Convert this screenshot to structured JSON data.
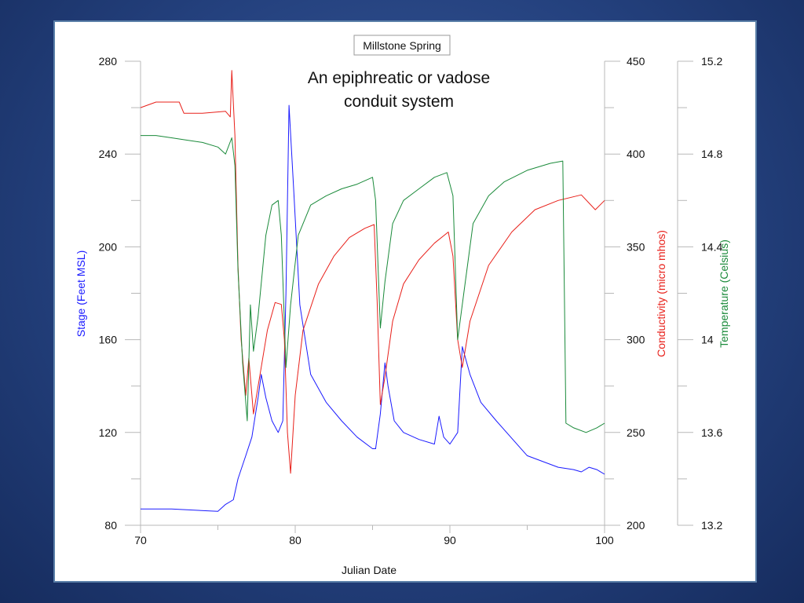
{
  "chart_data": {
    "type": "line",
    "title": "Millstone Spring",
    "annotation": [
      "An epiphreatic or vadose",
      "conduit system"
    ],
    "xlabel": "Julian Date",
    "xlim": [
      70,
      100
    ],
    "x_ticks": [
      70,
      80,
      90,
      100
    ],
    "axes": {
      "stage": {
        "label": "Stage (Feet MSL)",
        "color": "#1a1aff",
        "ylim": [
          80,
          280
        ],
        "ticks": [
          80,
          120,
          160,
          200,
          240,
          280
        ]
      },
      "conductivity": {
        "label": "Conductivity (micro mhos)",
        "color": "#e8201a",
        "ylim": [
          200,
          450
        ],
        "ticks": [
          200,
          250,
          300,
          350,
          400,
          450
        ]
      },
      "temperature": {
        "label": "Temperature (Celsius)",
        "color": "#1a8a3a",
        "ylim": [
          13.2,
          15.2
        ],
        "ticks": [
          "13.2",
          "13.6",
          "14",
          "14.4",
          "14.8",
          "15.2"
        ]
      }
    },
    "series": [
      {
        "name": "Stage (Feet MSL)",
        "axis": "stage",
        "points": [
          [
            70,
            87
          ],
          [
            72,
            87
          ],
          [
            75,
            86
          ],
          [
            75.5,
            89
          ],
          [
            76,
            91
          ],
          [
            76.3,
            100
          ],
          [
            76.8,
            110
          ],
          [
            77.2,
            118
          ],
          [
            77.6,
            135
          ],
          [
            77.8,
            145
          ],
          [
            78.1,
            135
          ],
          [
            78.5,
            125
          ],
          [
            78.9,
            120
          ],
          [
            79.2,
            125
          ],
          [
            79.4,
            180
          ],
          [
            79.6,
            261
          ],
          [
            79.9,
            225
          ],
          [
            80.3,
            175
          ],
          [
            81,
            145
          ],
          [
            82,
            133
          ],
          [
            83,
            125
          ],
          [
            84,
            118
          ],
          [
            85,
            113
          ],
          [
            85.2,
            113
          ],
          [
            85.5,
            128
          ],
          [
            85.8,
            150
          ],
          [
            86,
            140
          ],
          [
            86.4,
            125
          ],
          [
            87,
            120
          ],
          [
            88,
            117
          ],
          [
            89,
            115
          ],
          [
            89.3,
            127
          ],
          [
            89.6,
            118
          ],
          [
            90,
            115
          ],
          [
            90.5,
            120
          ],
          [
            90.8,
            157
          ],
          [
            91.3,
            145
          ],
          [
            92,
            133
          ],
          [
            93,
            125
          ],
          [
            95,
            110
          ],
          [
            97,
            105
          ],
          [
            98,
            104
          ],
          [
            98.5,
            103
          ],
          [
            99,
            105
          ],
          [
            99.5,
            104
          ],
          [
            100,
            102
          ]
        ]
      },
      {
        "name": "Conductivity (micro mhos)",
        "axis": "conductivity",
        "points": [
          [
            70,
            425
          ],
          [
            71,
            428
          ],
          [
            72.5,
            428
          ],
          [
            72.8,
            422
          ],
          [
            74,
            422
          ],
          [
            75.5,
            423
          ],
          [
            75.8,
            420
          ],
          [
            75.9,
            445
          ],
          [
            76.1,
            410
          ],
          [
            76.3,
            340
          ],
          [
            76.5,
            300
          ],
          [
            76.8,
            270
          ],
          [
            77,
            290
          ],
          [
            77.3,
            260
          ],
          [
            77.7,
            280
          ],
          [
            78.2,
            305
          ],
          [
            78.7,
            320
          ],
          [
            79.1,
            319
          ],
          [
            79.3,
            300
          ],
          [
            79.5,
            250
          ],
          [
            79.7,
            228
          ],
          [
            80,
            270
          ],
          [
            80.5,
            305
          ],
          [
            81.5,
            330
          ],
          [
            82.5,
            345
          ],
          [
            83.5,
            355
          ],
          [
            84.5,
            360
          ],
          [
            85.1,
            362
          ],
          [
            85.3,
            320
          ],
          [
            85.5,
            265
          ],
          [
            85.8,
            280
          ],
          [
            86.3,
            310
          ],
          [
            87,
            330
          ],
          [
            88,
            343
          ],
          [
            89,
            352
          ],
          [
            89.9,
            358
          ],
          [
            90.2,
            345
          ],
          [
            90.5,
            300
          ],
          [
            90.8,
            285
          ],
          [
            91.3,
            310
          ],
          [
            92.5,
            340
          ],
          [
            94,
            358
          ],
          [
            95.5,
            370
          ],
          [
            97,
            375
          ],
          [
            98.5,
            378
          ],
          [
            99.4,
            370
          ],
          [
            100,
            375
          ]
        ]
      },
      {
        "name": "Temperature (Celsius)",
        "axis": "temperature",
        "points": [
          [
            70,
            14.88
          ],
          [
            71,
            14.88
          ],
          [
            72,
            14.87
          ],
          [
            73,
            14.86
          ],
          [
            74,
            14.85
          ],
          [
            75,
            14.83
          ],
          [
            75.5,
            14.8
          ],
          [
            75.9,
            14.87
          ],
          [
            76.1,
            14.75
          ],
          [
            76.3,
            14.3
          ],
          [
            76.6,
            13.9
          ],
          [
            76.9,
            13.65
          ],
          [
            77.1,
            14.15
          ],
          [
            77.3,
            13.95
          ],
          [
            77.6,
            14.1
          ],
          [
            78.1,
            14.45
          ],
          [
            78.5,
            14.58
          ],
          [
            78.9,
            14.6
          ],
          [
            79.1,
            14.45
          ],
          [
            79.4,
            13.88
          ],
          [
            79.7,
            14.15
          ],
          [
            80.2,
            14.45
          ],
          [
            81,
            14.58
          ],
          [
            82,
            14.62
          ],
          [
            83,
            14.65
          ],
          [
            84,
            14.67
          ],
          [
            85,
            14.7
          ],
          [
            85.2,
            14.6
          ],
          [
            85.5,
            14.05
          ],
          [
            85.8,
            14.25
          ],
          [
            86.3,
            14.5
          ],
          [
            87,
            14.6
          ],
          [
            88,
            14.65
          ],
          [
            89,
            14.7
          ],
          [
            89.8,
            14.72
          ],
          [
            90.2,
            14.62
          ],
          [
            90.5,
            14.0
          ],
          [
            90.9,
            14.2
          ],
          [
            91.5,
            14.5
          ],
          [
            92.5,
            14.62
          ],
          [
            93.5,
            14.68
          ],
          [
            95,
            14.73
          ],
          [
            96.5,
            14.76
          ],
          [
            97.3,
            14.77
          ],
          [
            97.5,
            13.64
          ],
          [
            98,
            13.62
          ],
          [
            98.8,
            13.6
          ],
          [
            99.5,
            13.62
          ],
          [
            100,
            13.64
          ]
        ]
      }
    ]
  }
}
